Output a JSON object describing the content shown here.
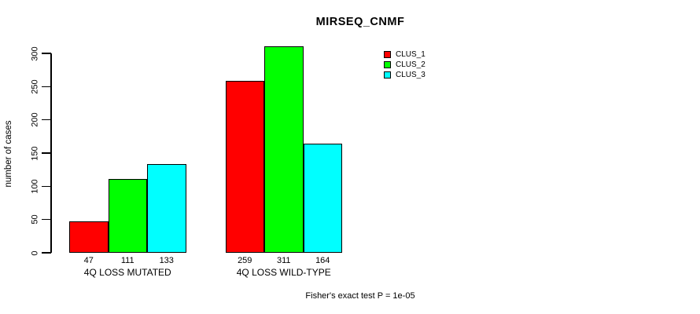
{
  "chart_data": {
    "type": "bar",
    "title": "MIRSEQ_CNMF",
    "ylabel": "number of cases",
    "xlabel": "Fisher's exact test P = 1e-05",
    "categories": [
      "4Q LOSS MUTATED",
      "4Q LOSS WILD-TYPE"
    ],
    "series": [
      {
        "name": "CLUS_1",
        "color": "#ff0000",
        "values": [
          47,
          259
        ]
      },
      {
        "name": "CLUS_2",
        "color": "#00ff00",
        "values": [
          111,
          311
        ]
      },
      {
        "name": "CLUS_3",
        "color": "#00ffff",
        "values": [
          133,
          164
        ]
      }
    ],
    "value_labels_shown": true,
    "yticks": [
      0,
      50,
      100,
      150,
      200,
      250,
      300
    ],
    "ylim": [
      0,
      311
    ],
    "grid": false,
    "legend_position": "top-right",
    "bar_border_color": "#000000",
    "axis_color": "#000000",
    "background_color": "#ffffff"
  }
}
